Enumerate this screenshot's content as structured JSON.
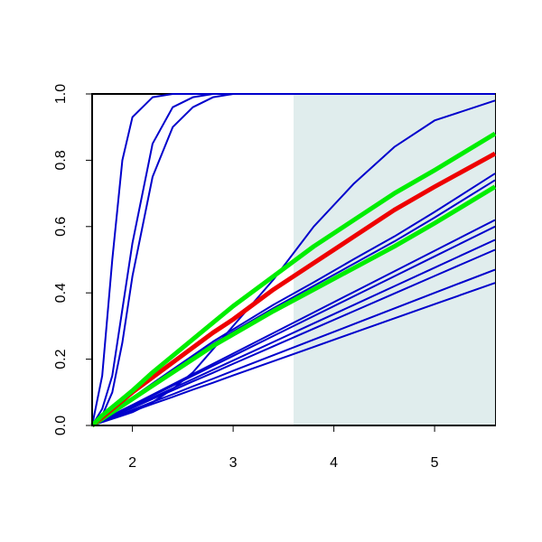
{
  "chart_data": {
    "type": "line",
    "x": [
      1.6,
      1.7,
      1.8,
      1.9,
      2.0,
      2.2,
      2.4,
      2.6,
      2.8,
      3.0,
      3.4,
      3.8,
      4.2,
      4.6,
      5.0,
      5.6
    ],
    "series": [
      {
        "color": "#0000cc",
        "values": [
          0,
          0.15,
          0.5,
          0.8,
          0.93,
          0.99,
          1,
          1,
          1,
          1,
          1,
          1,
          1,
          1,
          1,
          1
        ]
      },
      {
        "color": "#0000cc",
        "values": [
          0,
          0.05,
          0.15,
          0.35,
          0.55,
          0.85,
          0.96,
          0.99,
          1,
          1,
          1,
          1,
          1,
          1,
          1,
          1
        ]
      },
      {
        "color": "#0000cc",
        "values": [
          0,
          0.03,
          0.1,
          0.25,
          0.45,
          0.75,
          0.9,
          0.96,
          0.99,
          1,
          1,
          1,
          1,
          1,
          1,
          1
        ]
      },
      {
        "color": "#0000cc",
        "values": [
          0,
          0.01,
          0.02,
          0.03,
          0.04,
          0.07,
          0.11,
          0.16,
          0.23,
          0.3,
          0.44,
          0.6,
          0.73,
          0.84,
          0.92,
          0.98
        ]
      },
      {
        "color": "#0000cc",
        "values": [
          0,
          0.021,
          0.043,
          0.063,
          0.084,
          0.127,
          0.169,
          0.211,
          0.253,
          0.29,
          0.364,
          0.432,
          0.502,
          0.57,
          0.644,
          0.76
        ]
      },
      {
        "color": "#0000cc",
        "values": [
          0,
          0.021,
          0.041,
          0.061,
          0.082,
          0.124,
          0.164,
          0.206,
          0.246,
          0.283,
          0.354,
          0.421,
          0.488,
          0.555,
          0.627,
          0.74
        ]
      },
      {
        "color": "#0000cc",
        "values": [
          0,
          0.016,
          0.031,
          0.047,
          0.062,
          0.093,
          0.124,
          0.155,
          0.186,
          0.217,
          0.279,
          0.341,
          0.403,
          0.465,
          0.527,
          0.62
        ]
      },
      {
        "color": "#0000cc",
        "values": [
          0,
          0.015,
          0.03,
          0.045,
          0.06,
          0.09,
          0.12,
          0.15,
          0.18,
          0.21,
          0.27,
          0.33,
          0.39,
          0.45,
          0.51,
          0.6
        ]
      },
      {
        "color": "#0000cc",
        "values": [
          0,
          0.014,
          0.028,
          0.042,
          0.056,
          0.084,
          0.112,
          0.14,
          0.168,
          0.196,
          0.252,
          0.308,
          0.364,
          0.42,
          0.476,
          0.56
        ]
      },
      {
        "color": "#0000cc",
        "values": [
          0,
          0.013,
          0.027,
          0.04,
          0.053,
          0.08,
          0.106,
          0.133,
          0.159,
          0.186,
          0.239,
          0.292,
          0.345,
          0.398,
          0.451,
          0.53
        ]
      },
      {
        "color": "#0000cc",
        "values": [
          0,
          0.012,
          0.024,
          0.035,
          0.047,
          0.071,
          0.094,
          0.118,
          0.141,
          0.165,
          0.212,
          0.259,
          0.306,
          0.353,
          0.4,
          0.47
        ]
      },
      {
        "color": "#0000cc",
        "values": [
          0,
          0.011,
          0.022,
          0.032,
          0.043,
          0.065,
          0.086,
          0.108,
          0.129,
          0.151,
          0.194,
          0.237,
          0.28,
          0.323,
          0.366,
          0.43
        ]
      },
      {
        "color": "#00ee00",
        "values": [
          0,
          0.02,
          0.04,
          0.06,
          0.08,
          0.12,
          0.16,
          0.2,
          0.24,
          0.275,
          0.345,
          0.41,
          0.475,
          0.54,
          0.61,
          0.72
        ]
      },
      {
        "color": "#ee0000",
        "values": [
          0,
          0.025,
          0.05,
          0.075,
          0.1,
          0.145,
          0.19,
          0.235,
          0.28,
          0.32,
          0.41,
          0.49,
          0.57,
          0.65,
          0.72,
          0.82
        ]
      },
      {
        "color": "#00ee00",
        "values": [
          0,
          0.03,
          0.055,
          0.08,
          0.105,
          0.16,
          0.21,
          0.26,
          0.31,
          0.36,
          0.45,
          0.54,
          0.62,
          0.7,
          0.77,
          0.88
        ]
      }
    ],
    "xlim": [
      1.6,
      5.6
    ],
    "xticks": [
      2,
      3,
      4,
      5
    ],
    "ylim": [
      0,
      1
    ],
    "yticks": [
      {
        "value": 0,
        "label": "0.0"
      },
      {
        "value": 0.2,
        "label": "0.2"
      },
      {
        "value": 0.4,
        "label": "0.4"
      },
      {
        "value": 0.6,
        "label": "0.6"
      },
      {
        "value": 0.8,
        "label": "0.8"
      },
      {
        "value": 1,
        "label": "1.0"
      }
    ],
    "shaded_region": [
      3.6,
      5.6
    ],
    "shade_color": "#e0eded"
  }
}
